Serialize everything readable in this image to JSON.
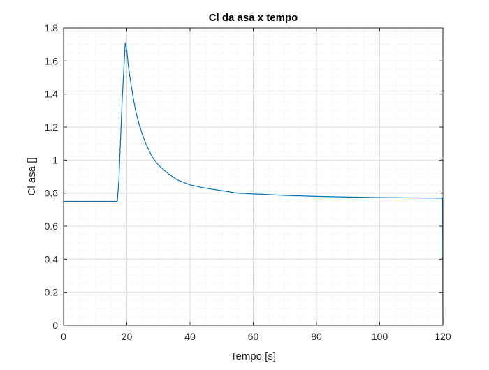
{
  "chart_data": {
    "type": "line",
    "title": "Cl da asa x tempo",
    "xlabel": "Tempo [s]",
    "ylabel": "Cl asa []",
    "xlim": [
      0,
      120
    ],
    "ylim": [
      0,
      1.8
    ],
    "xticks": [
      0,
      20,
      40,
      60,
      80,
      100,
      120
    ],
    "yticks": [
      0,
      0.2,
      0.4,
      0.6,
      0.8,
      1,
      1.2,
      1.4,
      1.6,
      1.8
    ],
    "xtick_labels": [
      "0",
      "20",
      "40",
      "60",
      "80",
      "100",
      "120"
    ],
    "ytick_labels": [
      "0",
      "0.2",
      "0.4",
      "0.6",
      "0.8",
      "1",
      "1.2",
      "1.4",
      "1.6",
      "1.8"
    ],
    "grid": true,
    "minor_grid": true,
    "series": [
      {
        "color": "#0072BD",
        "x": [
          0,
          10,
          17,
          17.5,
          18.5,
          19.5,
          20,
          20.5,
          21,
          22,
          23,
          24,
          25,
          26,
          28,
          30,
          33,
          36,
          40,
          45,
          50,
          55,
          60,
          70,
          80,
          90,
          100,
          110,
          119.9,
          119.95,
          120
        ],
        "y": [
          0.75,
          0.75,
          0.75,
          0.88,
          1.35,
          1.71,
          1.66,
          1.57,
          1.5,
          1.38,
          1.28,
          1.21,
          1.15,
          1.1,
          1.02,
          0.97,
          0.92,
          0.88,
          0.85,
          0.83,
          0.815,
          0.8,
          0.795,
          0.786,
          0.78,
          0.776,
          0.773,
          0.771,
          0.77,
          0.4,
          0
        ]
      }
    ]
  }
}
